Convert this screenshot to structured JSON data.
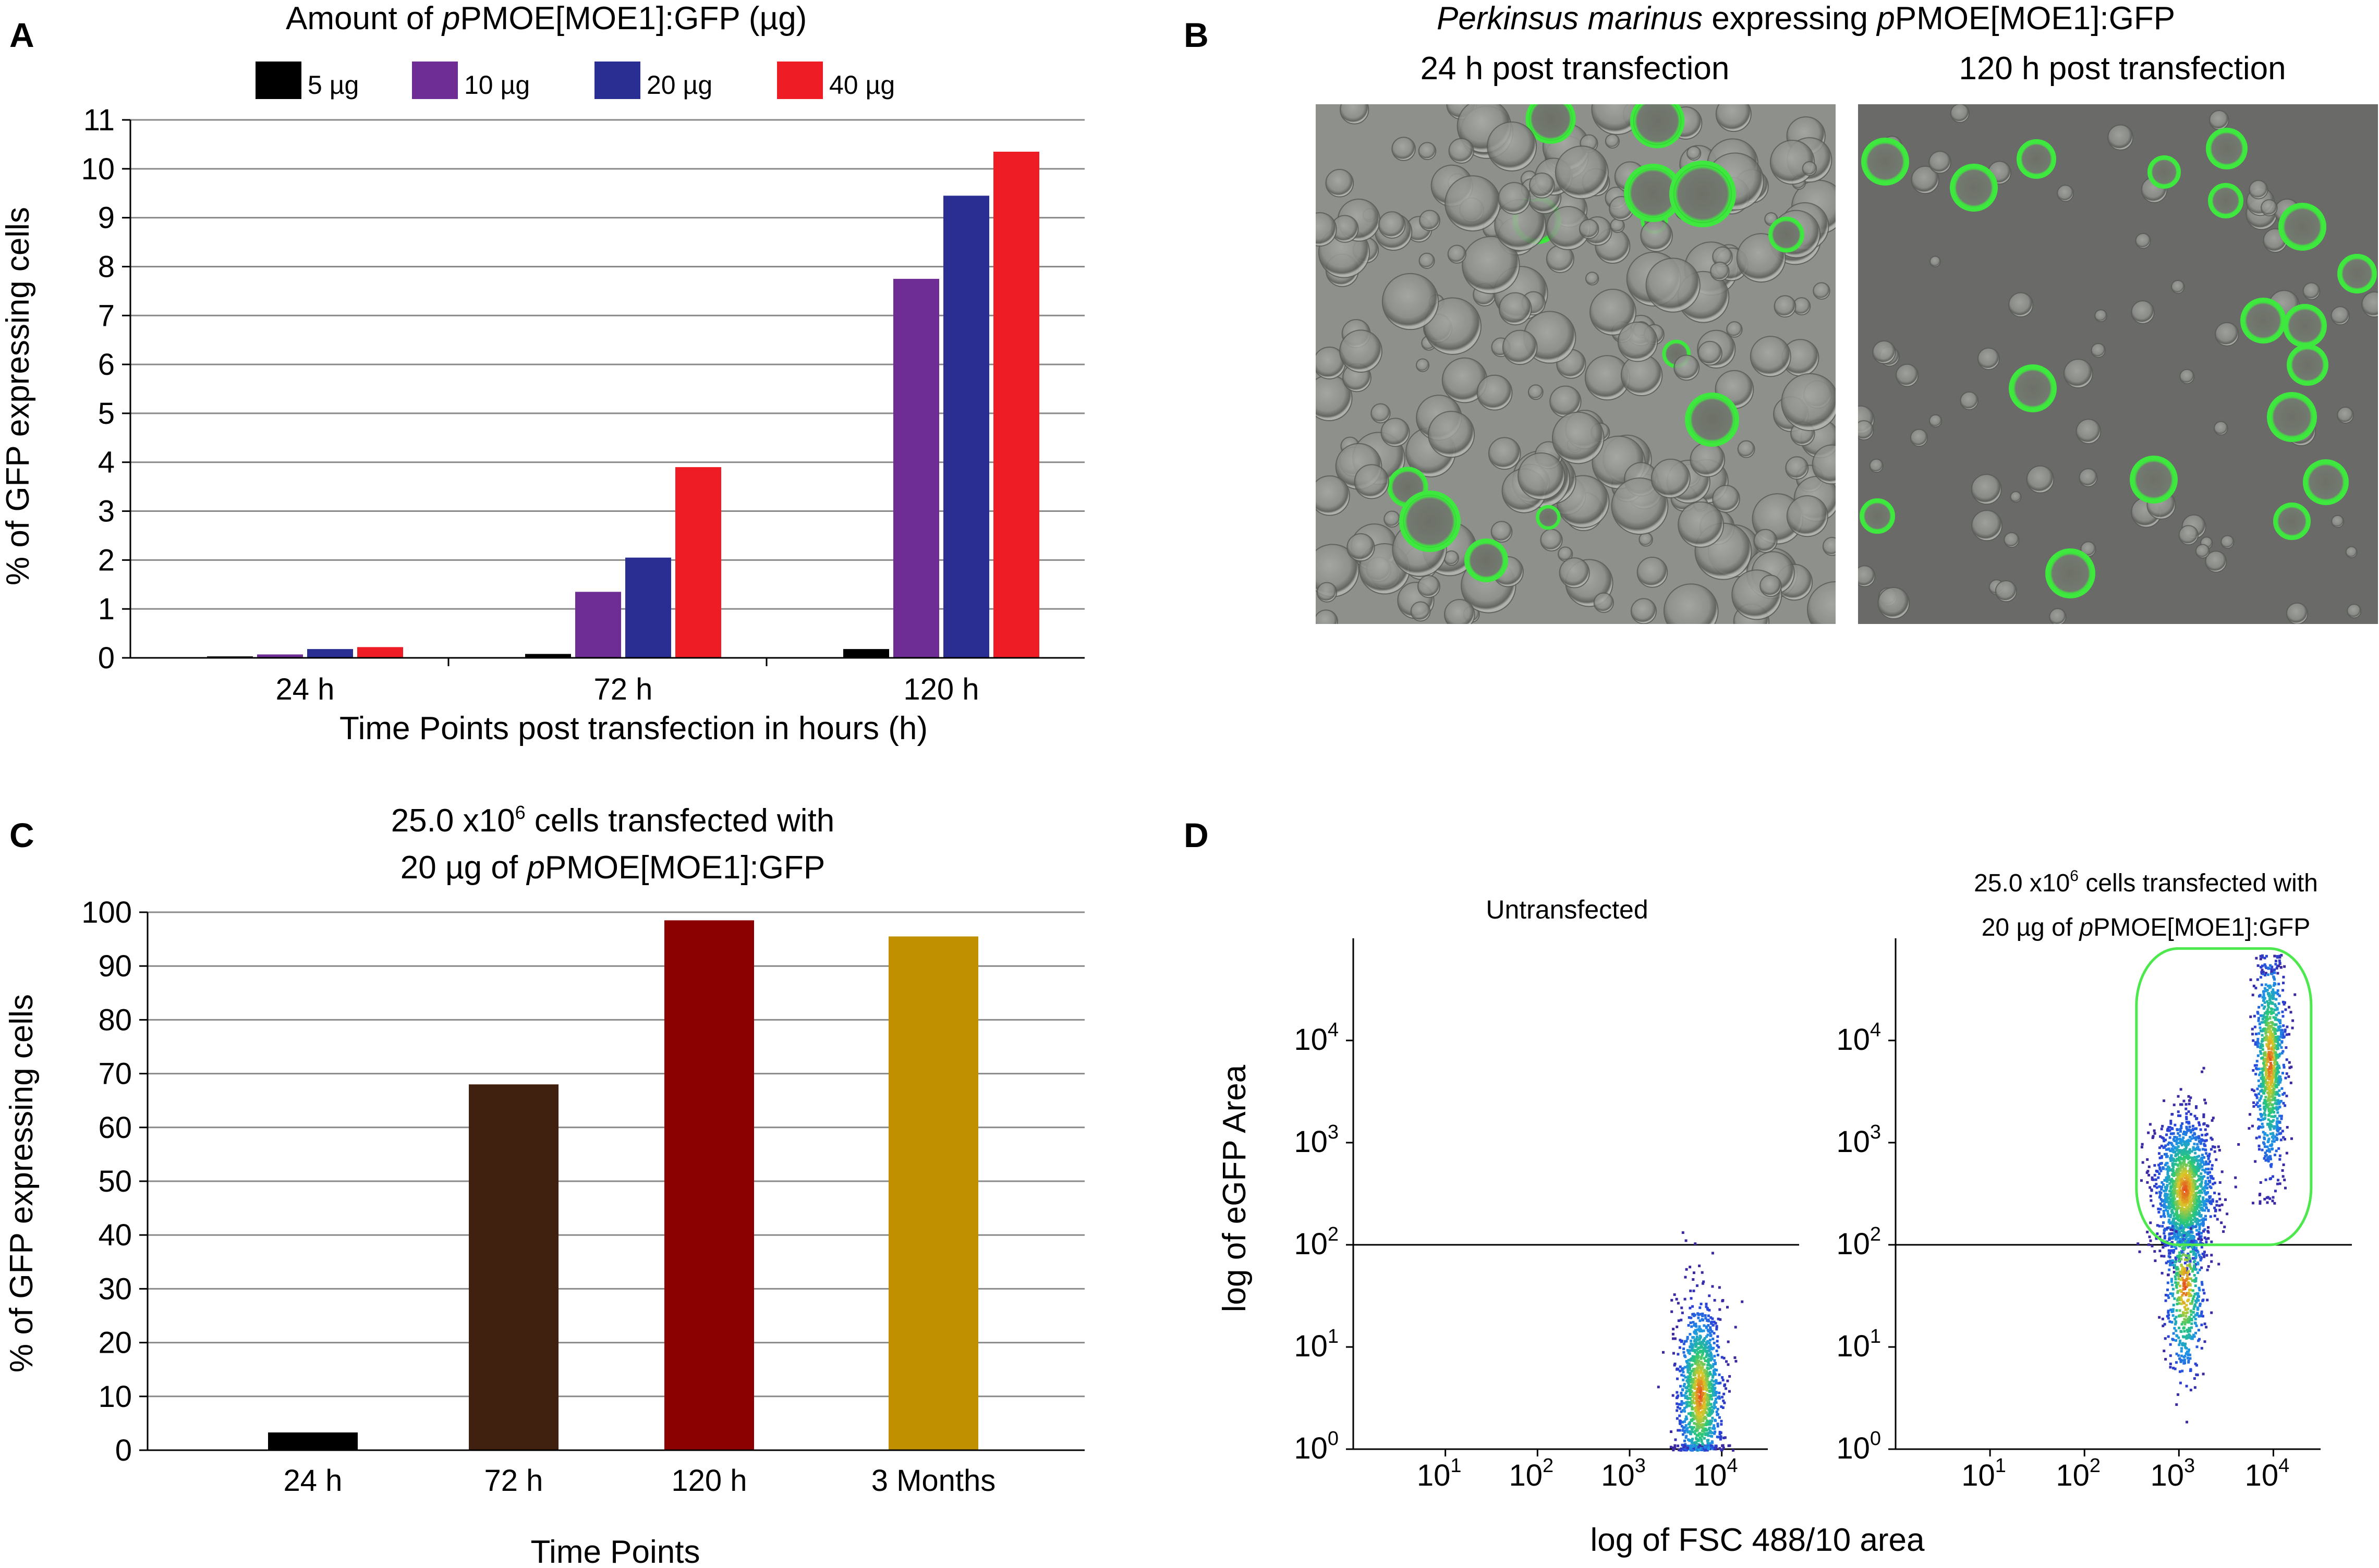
{
  "panel_labels": {
    "a": "A",
    "b": "B",
    "c": "C",
    "d": "D"
  },
  "colors": {
    "ug5": "#000000",
    "ug10": "#6e2d94",
    "ug20": "#2a2d92",
    "ug40": "#ee1c25",
    "c24": "#000000",
    "c72": "#40200e",
    "c120": "#8b0000",
    "c3m": "#c09000",
    "gfp": "#3ee83e",
    "gate": "#4de84d"
  },
  "chart_data": [
    {
      "id": "A",
      "type": "bar",
      "title_parts": [
        "Amount of ",
        "p",
        "PMOE[MOE1]:GFP (µg)"
      ],
      "xlabel": "Time Points post transfection in hours (h)",
      "ylabel": "% of GFP expressing cells",
      "categories": [
        "24 h",
        "72 h",
        "120 h"
      ],
      "ylim": [
        0,
        11
      ],
      "yticks": [
        "0",
        "1",
        "2",
        "3",
        "4",
        "5",
        "6",
        "7",
        "8",
        "9",
        "10",
        "11"
      ],
      "grid": true,
      "legend_position": "top",
      "series": [
        {
          "name": "5 µg",
          "values": [
            0.03,
            0.08,
            0.18
          ]
        },
        {
          "name": "10 µg",
          "values": [
            0.07,
            1.35,
            7.75
          ]
        },
        {
          "name": "20 µg",
          "values": [
            0.18,
            2.05,
            9.45
          ]
        },
        {
          "name": "40 µg",
          "values": [
            0.22,
            3.9,
            10.35
          ]
        }
      ]
    },
    {
      "id": "C",
      "type": "bar",
      "title_lines": [
        "25.0 x10",
        "6",
        " cells transfected with"
      ],
      "title_line2": [
        "20 µg of ",
        "p",
        "PMOE[MOE1]:GFP"
      ],
      "xlabel": "Time Points",
      "ylabel": "% of GFP expressing cells",
      "categories": [
        "24 h",
        "72 h",
        "120 h",
        "3 Months"
      ],
      "values": [
        3.3,
        68,
        98.5,
        95.5
      ],
      "ylim": [
        0,
        100
      ],
      "yticks": [
        "0",
        "10",
        "20",
        "30",
        "40",
        "50",
        "60",
        "70",
        "80",
        "90",
        "100"
      ],
      "grid": true
    },
    {
      "id": "D",
      "type": "scatter",
      "xlabel": "log of FSC 488/10 area",
      "ylabel": "log of eGFP Area",
      "xticks": [
        {
          "base": "10",
          "exp": "1"
        },
        {
          "base": "10",
          "exp": "2"
        },
        {
          "base": "10",
          "exp": "3"
        },
        {
          "base": "10",
          "exp": "4"
        }
      ],
      "yticks": [
        {
          "base": "10",
          "exp": "0"
        },
        {
          "base": "10",
          "exp": "1"
        },
        {
          "base": "10",
          "exp": "2"
        },
        {
          "base": "10",
          "exp": "3"
        },
        {
          "base": "10",
          "exp": "4"
        }
      ],
      "xlim_log10": [
        0,
        4.5
      ],
      "ylim_log10": [
        0,
        5.0
      ],
      "threshold_log10": 2,
      "subplots": [
        {
          "title": "Untransfected",
          "clusters": [
            {
              "cx": 3.75,
              "cy": 0.55,
              "sx": 0.12,
              "sy": 0.45,
              "n": 1200,
              "ymax": 2.2,
              "ymin": 0
            }
          ]
        },
        {
          "title_parts": [
            "25.0 x10",
            "6",
            " cells transfected with"
          ],
          "title_line2": [
            "20 µg of ",
            "p",
            "PMOE[MOE1]:GFP"
          ],
          "gate": {
            "x0": 2.55,
            "x1": 4.4,
            "y0": 2.0,
            "y1": 4.9
          },
          "clusters": [
            {
              "cx": 3.05,
              "cy": 2.55,
              "sx": 0.15,
              "sy": 0.35,
              "n": 1500,
              "ymax": 3.8,
              "ymin": 1.7
            },
            {
              "cx": 3.95,
              "cy": 3.8,
              "sx": 0.08,
              "sy": 0.55,
              "n": 900,
              "ymax": 4.85,
              "ymin": 2.4
            },
            {
              "cx": 3.05,
              "cy": 1.6,
              "sx": 0.1,
              "sy": 0.45,
              "n": 500,
              "ymax": 2.2,
              "ymin": 0
            }
          ]
        }
      ]
    }
  ],
  "panel_b": {
    "title_parts": [
      "Perkinsus marinus",
      " expressing  ",
      "p",
      "PMOE[MOE1]:GFP"
    ],
    "left_caption": "24 h post transfection",
    "right_caption": "120 h post transfection"
  }
}
